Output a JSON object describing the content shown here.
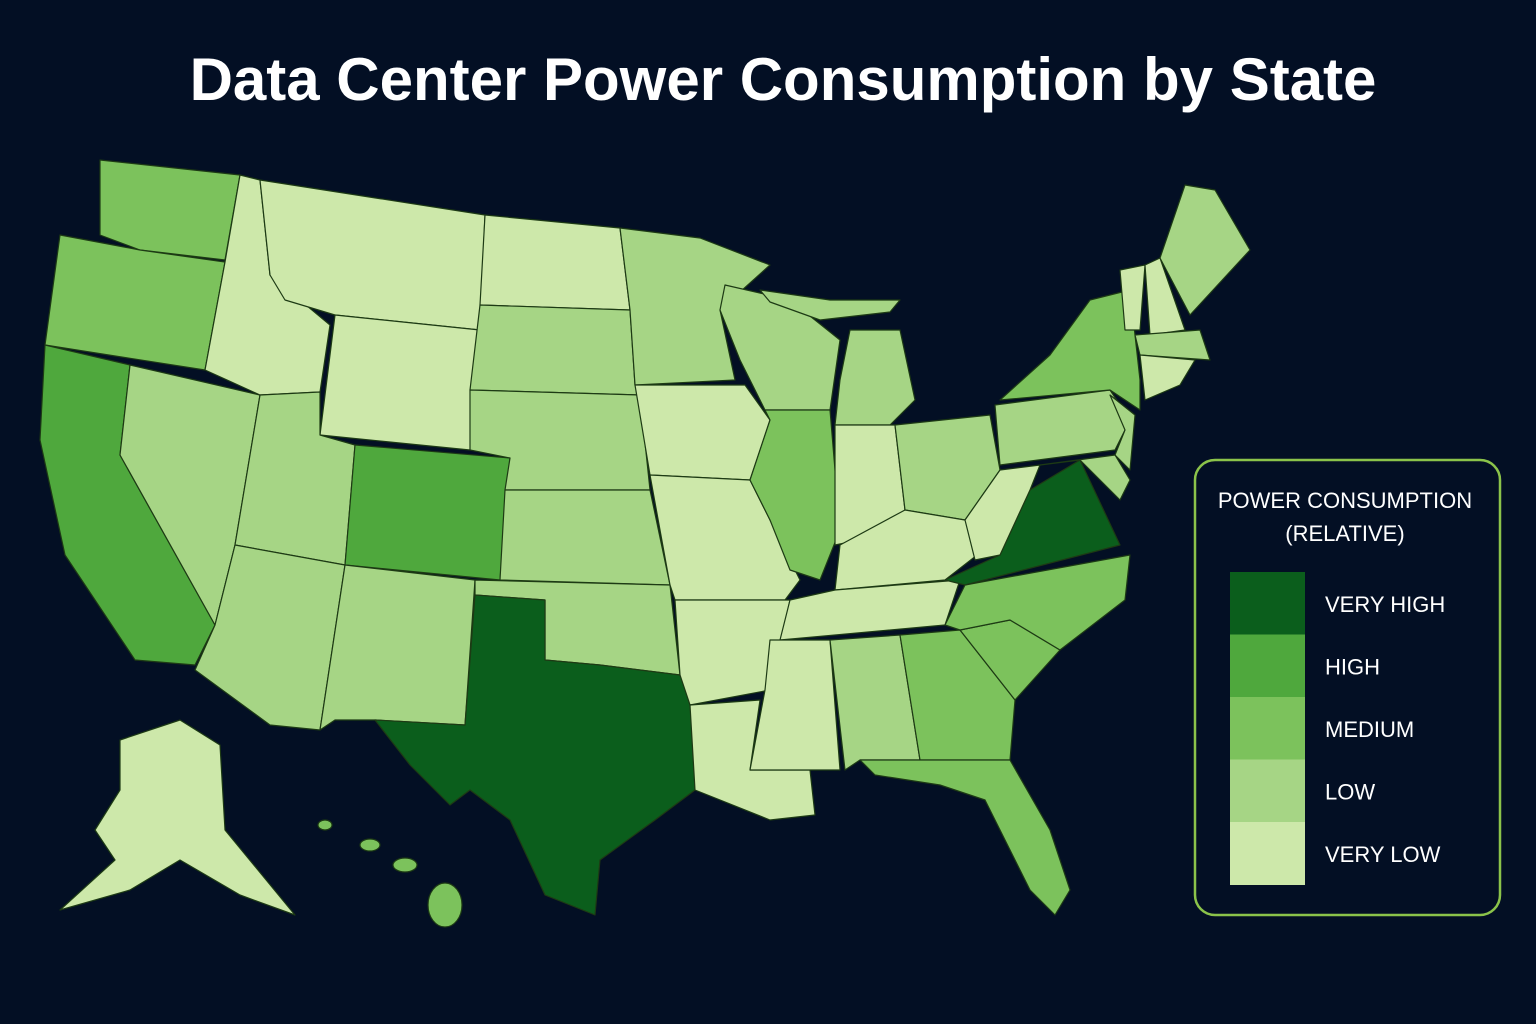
{
  "title": "Data Center Power Consumption by State",
  "legend": {
    "title_lines": [
      "POWER CONSUMPTION",
      "(RELATIVE)"
    ],
    "items": [
      {
        "label": "VERY HIGH",
        "color": "#0b5e1c"
      },
      {
        "label": "HIGH",
        "color": "#4fa83d"
      },
      {
        "label": "MEDIUM",
        "color": "#7cc25c"
      },
      {
        "label": "LOW",
        "color": "#a6d585"
      },
      {
        "label": "VERY LOW",
        "color": "#cde8aa"
      }
    ]
  }
}
